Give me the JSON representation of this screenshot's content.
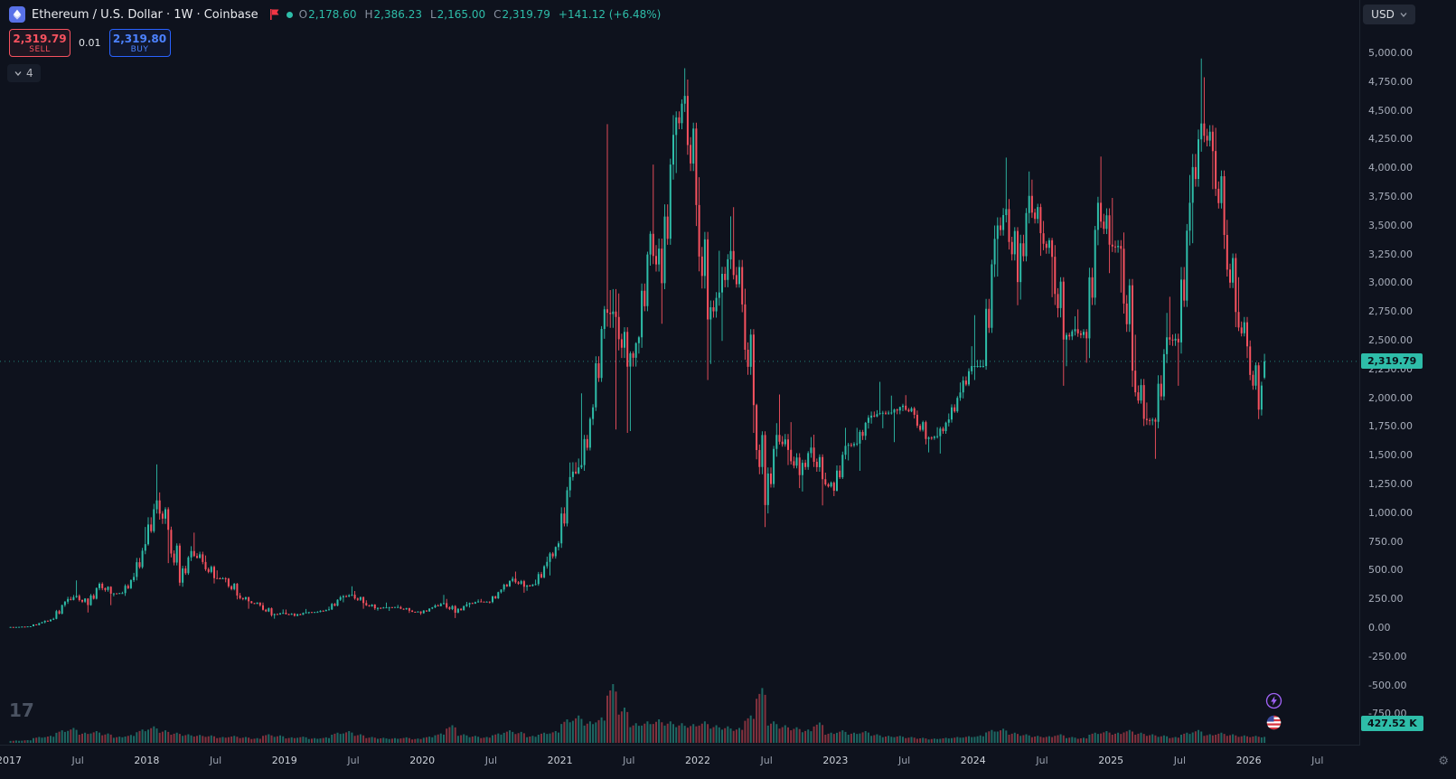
{
  "header": {
    "symbol_title": "Ethereum / U.S. Dollar · 1W · Coinbase",
    "ohlc": {
      "o_label": "O",
      "o": "2,178.60",
      "h_label": "H",
      "h": "2,386.23",
      "l_label": "L",
      "l": "2,165.00",
      "c_label": "C",
      "c": "2,319.79",
      "change": "+141.12 (+6.48%)"
    },
    "currency": "USD"
  },
  "trade_panel": {
    "sell_price": "2,319.79",
    "sell_label": "SELL",
    "spread": "0.01",
    "buy_price": "2,319.80",
    "buy_label": "BUY"
  },
  "object_tree": {
    "count": "4"
  },
  "price_scale": {
    "current_price_label": "2,319.79",
    "volume_label": "427.52 K"
  },
  "watermark": "17",
  "chart_data": {
    "type": "candlestick",
    "title": "Ethereum / U.S. Dollar",
    "interval": "1W",
    "exchange": "Coinbase",
    "quote": "USD",
    "colors": {
      "up": "#2ebda9",
      "down": "#f7525f"
    },
    "price_axis": {
      "min": -750,
      "max": 5000,
      "step": 250
    },
    "time_axis": [
      {
        "text": "2017",
        "t": 2017.0
      },
      {
        "text": "Jul",
        "t": 2017.5
      },
      {
        "text": "2018",
        "t": 2018.0
      },
      {
        "text": "Jul",
        "t": 2018.5
      },
      {
        "text": "2019",
        "t": 2019.0
      },
      {
        "text": "Jul",
        "t": 2019.5
      },
      {
        "text": "2020",
        "t": 2020.0
      },
      {
        "text": "Jul",
        "t": 2020.5
      },
      {
        "text": "2021",
        "t": 2021.0
      },
      {
        "text": "Jul",
        "t": 2021.5
      },
      {
        "text": "2022",
        "t": 2022.0
      },
      {
        "text": "Jul",
        "t": 2022.5
      },
      {
        "text": "2023",
        "t": 2023.0
      },
      {
        "text": "Jul",
        "t": 2023.5
      },
      {
        "text": "2024",
        "t": 2024.0
      },
      {
        "text": "Jul",
        "t": 2024.5
      },
      {
        "text": "2025",
        "t": 2025.0
      },
      {
        "text": "Jul",
        "t": 2025.5
      },
      {
        "text": "2026",
        "t": 2026.0
      },
      {
        "text": "Jul",
        "t": 2026.5
      }
    ],
    "start_month": "2017-01",
    "last_month_weeks": 2,
    "monthly_ohlc": [
      [
        8,
        11,
        7,
        10.7
      ],
      [
        10.7,
        16,
        10,
        15.7
      ],
      [
        15.7,
        55,
        15,
        50
      ],
      [
        50,
        90,
        42,
        80
      ],
      [
        80,
        235,
        76,
        230
      ],
      [
        230,
        415,
        210,
        280
      ],
      [
        280,
        293,
        135,
        200
      ],
      [
        200,
        397,
        195,
        385
      ],
      [
        385,
        398,
        200,
        300
      ],
      [
        300,
        316,
        275,
        305
      ],
      [
        305,
        480,
        280,
        445
      ],
      [
        445,
        880,
        415,
        730
      ],
      [
        730,
        1424,
        718,
        1110
      ],
      [
        1110,
        1180,
        565,
        855
      ],
      [
        855,
        882,
        368,
        395
      ],
      [
        395,
        712,
        360,
        670
      ],
      [
        670,
        830,
        555,
        575
      ],
      [
        575,
        632,
        388,
        435
      ],
      [
        435,
        502,
        398,
        430
      ],
      [
        430,
        436,
        250,
        283
      ],
      [
        283,
        306,
        168,
        233
      ],
      [
        233,
        236,
        186,
        198
      ],
      [
        198,
        222,
        100,
        113
      ],
      [
        113,
        162,
        82,
        133
      ],
      [
        133,
        161,
        101,
        107
      ],
      [
        107,
        166,
        102,
        137
      ],
      [
        137,
        148,
        124,
        141
      ],
      [
        141,
        186,
        137,
        162
      ],
      [
        162,
        281,
        157,
        268
      ],
      [
        268,
        363,
        224,
        290
      ],
      [
        290,
        322,
        168,
        218
      ],
      [
        218,
        241,
        158,
        172
      ],
      [
        172,
        222,
        151,
        180
      ],
      [
        180,
        201,
        149,
        183
      ],
      [
        183,
        193,
        131,
        151
      ],
      [
        151,
        158,
        115,
        130
      ],
      [
        130,
        183,
        125,
        180
      ],
      [
        180,
        289,
        174,
        217
      ],
      [
        217,
        254,
        87,
        134
      ],
      [
        134,
        228,
        129,
        206
      ],
      [
        206,
        249,
        179,
        232
      ],
      [
        232,
        254,
        214,
        226
      ],
      [
        226,
        337,
        216,
        335
      ],
      [
        335,
        448,
        316,
        429
      ],
      [
        429,
        491,
        307,
        360
      ],
      [
        360,
        421,
        324,
        383
      ],
      [
        383,
        622,
        368,
        576
      ],
      [
        576,
        756,
        458,
        737
      ],
      [
        737,
        1441,
        698,
        1314
      ],
      [
        1314,
        2042,
        1283,
        1418
      ],
      [
        1418,
        1947,
        1368,
        1920
      ],
      [
        1920,
        2802,
        1888,
        2773
      ],
      [
        2773,
        4384,
        1728,
        2707
      ],
      [
        2707,
        2910,
        1698,
        2275
      ],
      [
        2275,
        2542,
        1714,
        2530
      ],
      [
        2530,
        3454,
        2438,
        3430
      ],
      [
        3430,
        4032,
        2648,
        3000
      ],
      [
        3000,
        4462,
        2948,
        4290
      ],
      [
        4290,
        4870,
        3958,
        4630
      ],
      [
        4630,
        4772,
        3498,
        3680
      ],
      [
        3680,
        3922,
        2158,
        2685
      ],
      [
        2685,
        3282,
        2298,
        2920
      ],
      [
        2920,
        3582,
        2498,
        3280
      ],
      [
        3280,
        3662,
        2748,
        2815
      ],
      [
        2815,
        2952,
        1698,
        1940
      ],
      [
        1940,
        1952,
        878,
        1070
      ],
      [
        1070,
        1782,
        998,
        1680
      ],
      [
        1680,
        2032,
        1418,
        1550
      ],
      [
        1550,
        1792,
        1218,
        1330
      ],
      [
        1330,
        1662,
        1188,
        1570
      ],
      [
        1570,
        1682,
        1068,
        1295
      ],
      [
        1295,
        1352,
        1148,
        1195
      ],
      [
        1195,
        1742,
        1188,
        1585
      ],
      [
        1585,
        1742,
        1458,
        1605
      ],
      [
        1605,
        1852,
        1368,
        1830
      ],
      [
        1830,
        2142,
        1778,
        1870
      ],
      [
        1870,
        2022,
        1738,
        1875
      ],
      [
        1875,
        1952,
        1618,
        1935
      ],
      [
        1935,
        2027,
        1823,
        1855
      ],
      [
        1855,
        1892,
        1598,
        1645
      ],
      [
        1645,
        1747,
        1528,
        1670
      ],
      [
        1670,
        1867,
        1518,
        1815
      ],
      [
        1815,
        2137,
        1788,
        2050
      ],
      [
        2050,
        2452,
        1998,
        2280
      ],
      [
        2280,
        2722,
        2158,
        2280
      ],
      [
        2280,
        3502,
        2248,
        3385
      ],
      [
        3385,
        4093,
        3058,
        3645
      ],
      [
        3645,
        3732,
        2808,
        3010
      ],
      [
        3010,
        3972,
        2858,
        3760
      ],
      [
        3760,
        3902,
        3238,
        3435
      ],
      [
        3435,
        3542,
        2878,
        3230
      ],
      [
        3230,
        3332,
        2108,
        2510
      ],
      [
        2510,
        2712,
        2278,
        2600
      ],
      [
        2600,
        2772,
        2308,
        2520
      ],
      [
        2520,
        3752,
        2348,
        3700
      ],
      [
        3700,
        4102,
        3088,
        3335
      ],
      [
        3335,
        3742,
        2918,
        3300
      ],
      [
        3300,
        3442,
        2098,
        2240
      ],
      [
        2240,
        2552,
        1758,
        1820
      ],
      [
        1820,
        1962,
        1472,
        1795
      ],
      [
        1795,
        2742,
        1738,
        2530
      ],
      [
        2530,
        2882,
        2108,
        2485
      ],
      [
        2485,
        3942,
        2388,
        3700
      ],
      [
        3700,
        4955,
        3348,
        4390
      ],
      [
        4390,
        4792,
        3818,
        4150
      ],
      [
        4150,
        4352,
        3298,
        3420
      ],
      [
        3420,
        3552,
        2618,
        2750
      ],
      [
        2750,
        3052,
        2348,
        2450
      ],
      [
        2450,
        2502,
        1818,
        1900
      ],
      [
        1900,
        2386.23,
        1850,
        2319.79
      ]
    ],
    "monthly_volume_k": [
      600,
      700,
      1500,
      1800,
      3200,
      3800,
      2600,
      3000,
      2400,
      1600,
      2000,
      3400,
      4200,
      3200,
      2600,
      2200,
      2000,
      1900,
      1500,
      1800,
      1500,
      1200,
      2200,
      1900,
      1400,
      1600,
      1200,
      1400,
      2600,
      3000,
      2200,
      1500,
      1300,
      1200,
      1400,
      1100,
      1600,
      2400,
      4500,
      2200,
      1800,
      1500,
      2400,
      3200,
      2800,
      1800,
      2600,
      3000,
      6000,
      7000,
      5500,
      6500,
      15000,
      9000,
      5000,
      5500,
      6000,
      5500,
      5000,
      4800,
      5500,
      4500,
      4200,
      3800,
      7000,
      14000,
      5500,
      4500,
      4000,
      3400,
      5200,
      2600,
      3200,
      2600,
      3000,
      2200,
      1800,
      1800,
      1500,
      1300,
      1100,
      1300,
      1500,
      1700,
      1900,
      3300,
      3600,
      2600,
      2200,
      1800,
      1700,
      2200,
      1500,
      1300,
      2600,
      3000,
      2600,
      3300,
      2600,
      2200,
      1900,
      1500,
      2600,
      3300,
      2200,
      2600,
      2200,
      1900,
      1800,
      1710
    ],
    "current_week": {
      "open": 2178.6,
      "high": 2386.23,
      "low": 2165.0,
      "close": 2319.79,
      "change": 141.12,
      "change_pct": 6.48
    }
  }
}
